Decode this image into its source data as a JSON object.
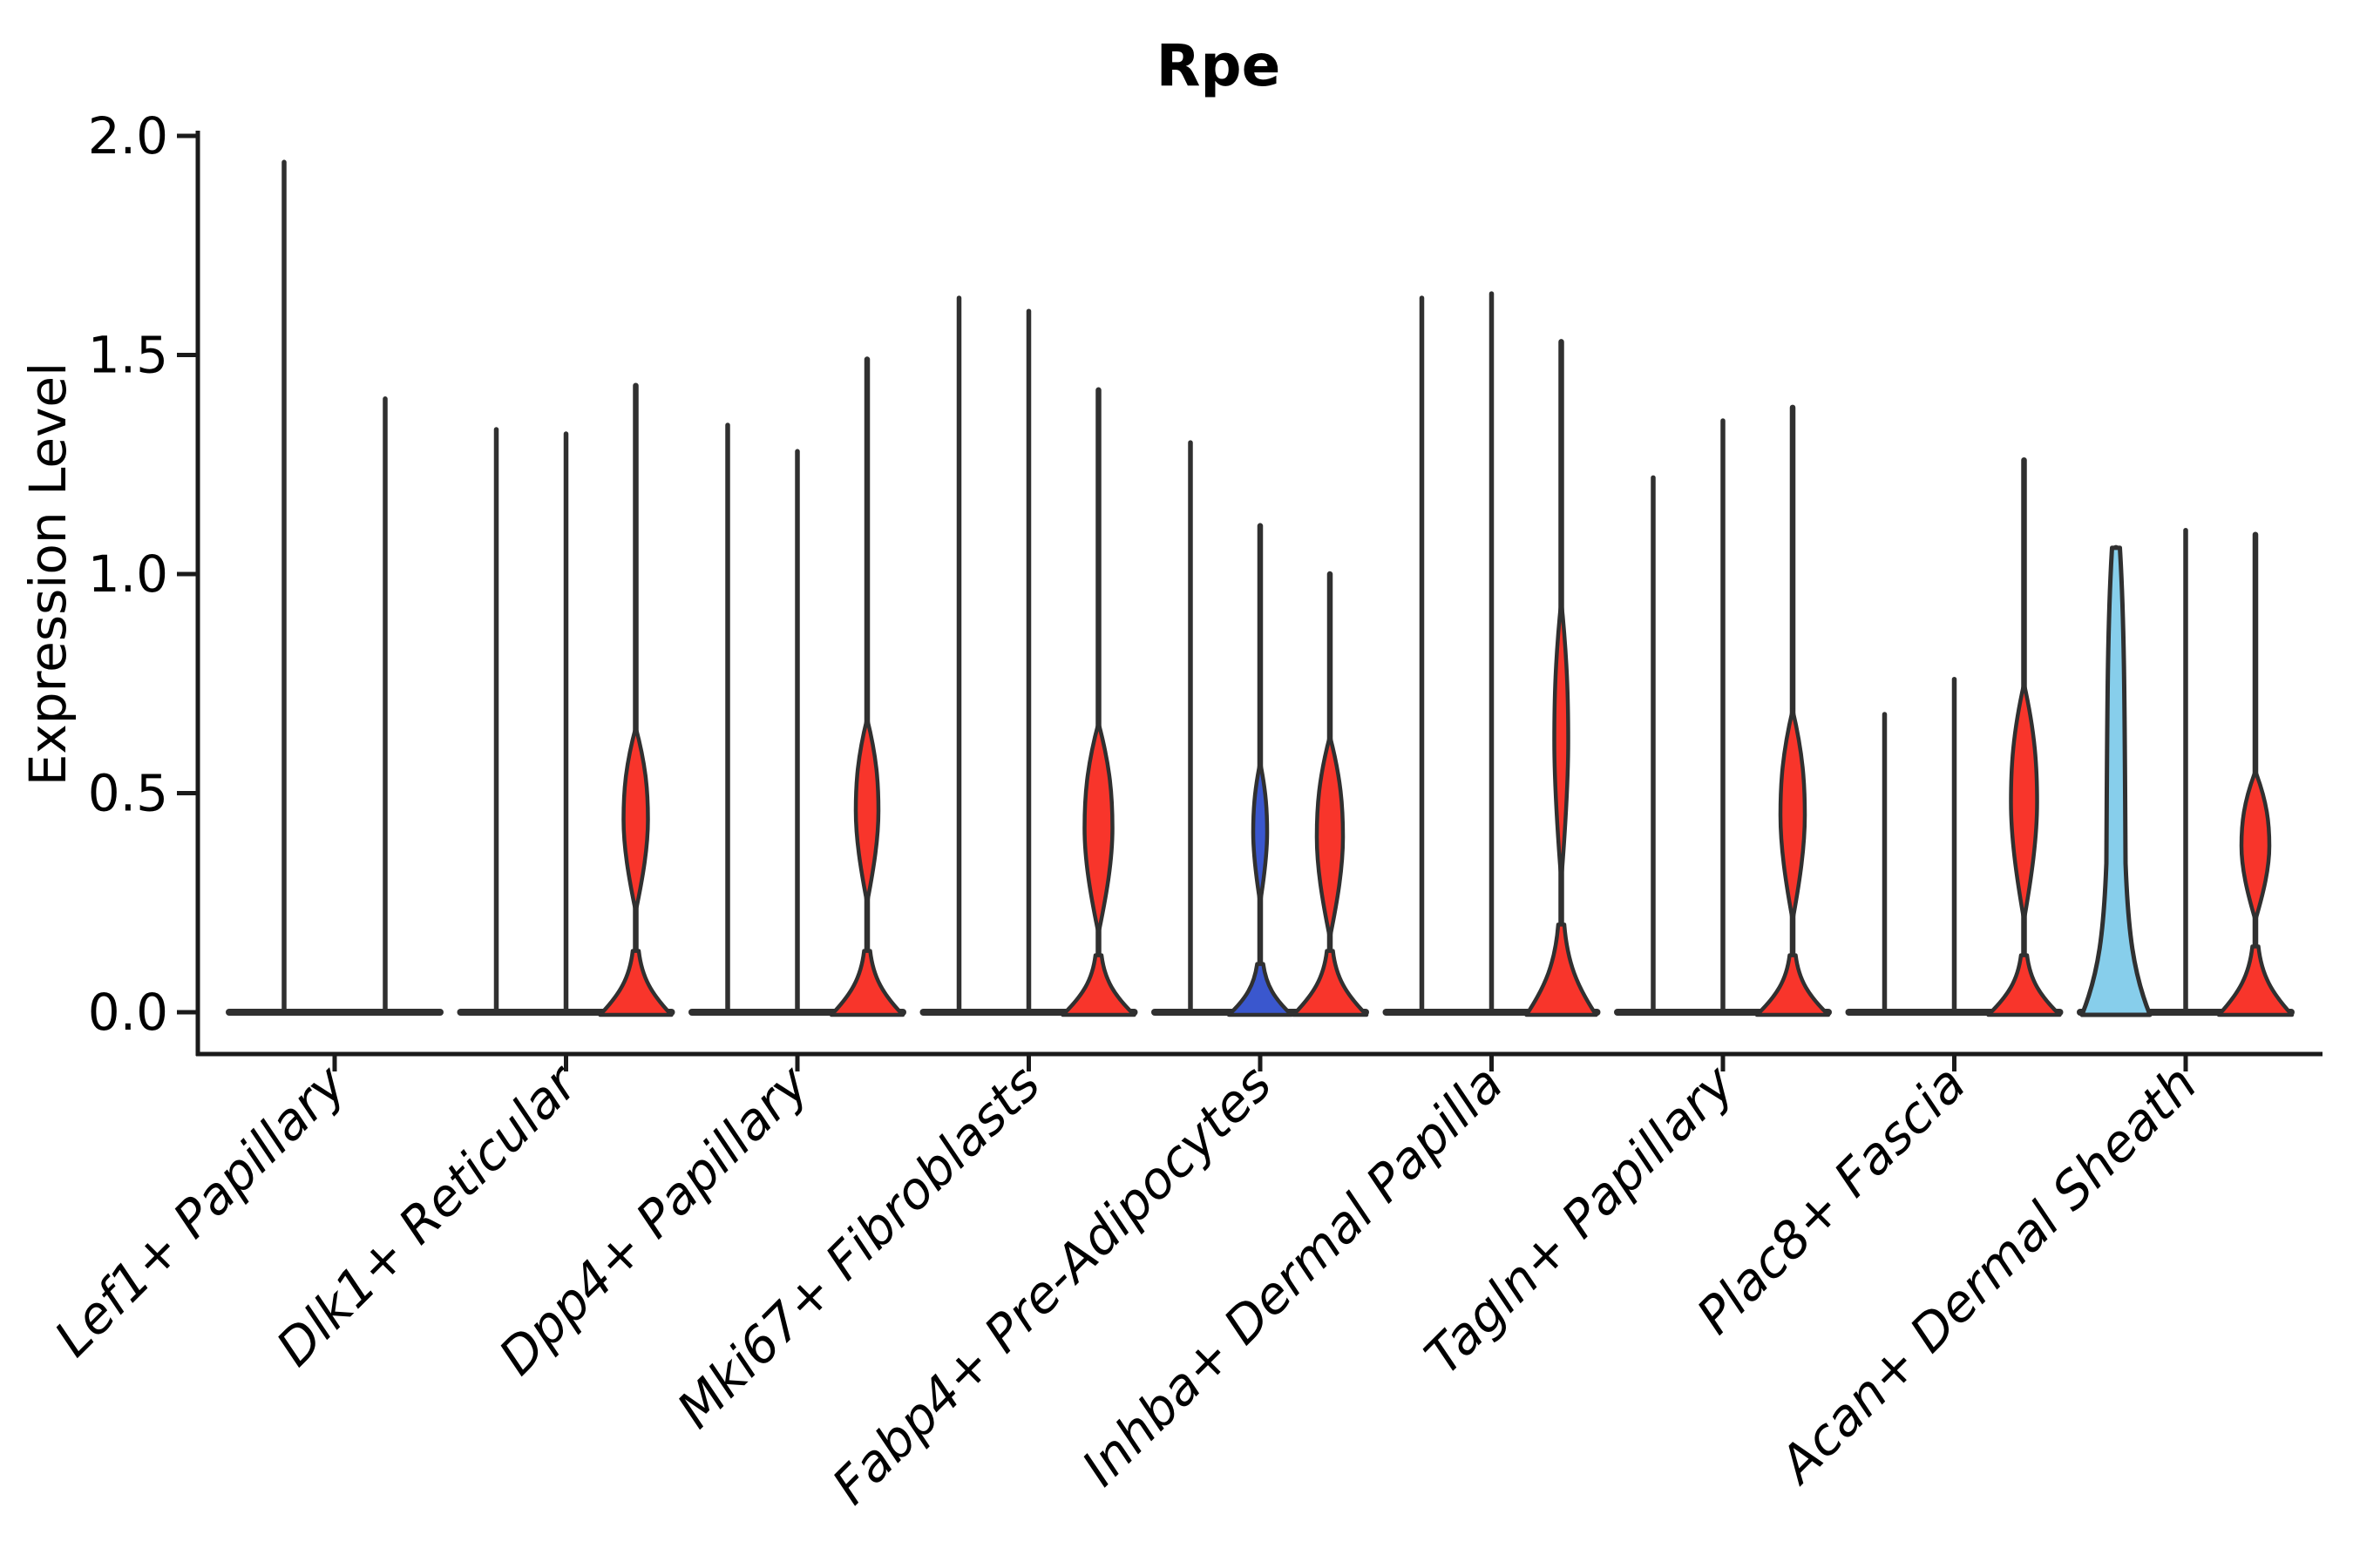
{
  "chart_data": {
    "type": "violin",
    "title": "Rpe",
    "ylabel": "Expression Level",
    "xlabel": "",
    "ylim": [
      0.0,
      2.0
    ],
    "grid": false,
    "legend": "none",
    "yticks": [
      {
        "value": 2.0,
        "label": "2.0"
      },
      {
        "value": 1.5,
        "label": "1.5"
      },
      {
        "value": 1.0,
        "label": "1.0"
      },
      {
        "value": 0.5,
        "label": "0.5"
      },
      {
        "value": 0.0,
        "label": "0.0"
      }
    ],
    "colors": {
      "red": "#f8352b",
      "blue": "#3a57ce",
      "skyblue": "#87ceeb",
      "ink": "#303030",
      "axis": "#1a1a1a"
    },
    "categories": [
      {
        "label": "Lef1+ Papillary",
        "violins": [
          {
            "max": 1.94,
            "fill": "none"
          },
          {
            "max": 1.4,
            "fill": "none"
          }
        ]
      },
      {
        "label": "Dlk1+ Reticular",
        "violins": [
          {
            "max": 1.33,
            "fill": "none"
          },
          {
            "max": 1.32,
            "fill": "none"
          },
          {
            "max": 1.43,
            "fill": "red",
            "spindle": {
              "center": 0.44,
              "half": 0.21,
              "w": 14
            },
            "bell": {
              "top": 0.14,
              "w": 41
            }
          }
        ]
      },
      {
        "label": "Dpp4+ Papillary",
        "violins": [
          {
            "max": 1.34,
            "fill": "none"
          },
          {
            "max": 1.28,
            "fill": "none"
          },
          {
            "max": 1.49,
            "fill": "red",
            "spindle": {
              "center": 0.46,
              "half": 0.21,
              "w": 13
            },
            "bell": {
              "top": 0.14,
              "w": 41
            }
          }
        ]
      },
      {
        "label": "Mki67+ Fibroblasts",
        "violins": [
          {
            "max": 1.63,
            "fill": "none"
          },
          {
            "max": 1.6,
            "fill": "none"
          },
          {
            "max": 1.42,
            "fill": "red",
            "spindle": {
              "center": 0.42,
              "half": 0.24,
              "w": 16
            },
            "bell": {
              "top": 0.13,
              "w": 41
            }
          }
        ]
      },
      {
        "label": "Fabp4+ Pre-Adipocytes",
        "violins": [
          {
            "max": 1.3,
            "fill": "none"
          },
          {
            "max": 1.11,
            "fill": "blue",
            "spindle": {
              "center": 0.41,
              "half": 0.16,
              "w": 8
            },
            "bell": {
              "top": 0.11,
              "w": 36
            }
          },
          {
            "max": 1.0,
            "fill": "red",
            "spindle": {
              "center": 0.4,
              "half": 0.23,
              "w": 15
            },
            "bell": {
              "top": 0.14,
              "w": 42
            }
          }
        ]
      },
      {
        "label": "Inhba+ Dermal Papilla",
        "violins": [
          {
            "max": 1.63,
            "fill": "none"
          },
          {
            "max": 1.64,
            "fill": "none"
          },
          {
            "max": 1.53,
            "fill": "red",
            "spindle": {
              "center": 0.62,
              "half": 0.32,
              "w": 8
            },
            "bell": {
              "top": 0.2,
              "w": 40
            }
          }
        ]
      },
      {
        "label": "Tagln+ Papillary",
        "violins": [
          {
            "max": 1.22,
            "fill": "none"
          },
          {
            "max": 1.35,
            "fill": "none"
          },
          {
            "max": 1.38,
            "fill": "red",
            "spindle": {
              "center": 0.45,
              "half": 0.24,
              "w": 14
            },
            "bell": {
              "top": 0.13,
              "w": 41
            }
          }
        ]
      },
      {
        "label": "Plac8+ Fascia",
        "violins": [
          {
            "max": 0.68,
            "fill": "none"
          },
          {
            "max": 0.76,
            "fill": "none"
          },
          {
            "max": 1.26,
            "fill": "red",
            "spindle": {
              "center": 0.48,
              "half": 0.27,
              "w": 15
            },
            "bell": {
              "top": 0.13,
              "w": 41
            }
          }
        ]
      },
      {
        "label": "Acan+ Dermal Sheath",
        "violins": [
          {
            "max": 1.06,
            "fill": "skyblue",
            "wedge": {
              "col": 10,
              "flare": 0.34,
              "w": 39
            }
          },
          {
            "max": 1.1,
            "fill": "none"
          },
          {
            "max": 1.09,
            "fill": "red",
            "spindle": {
              "center": 0.38,
              "half": 0.17,
              "w": 16
            },
            "bell": {
              "top": 0.15,
              "w": 42
            }
          }
        ]
      }
    ]
  }
}
